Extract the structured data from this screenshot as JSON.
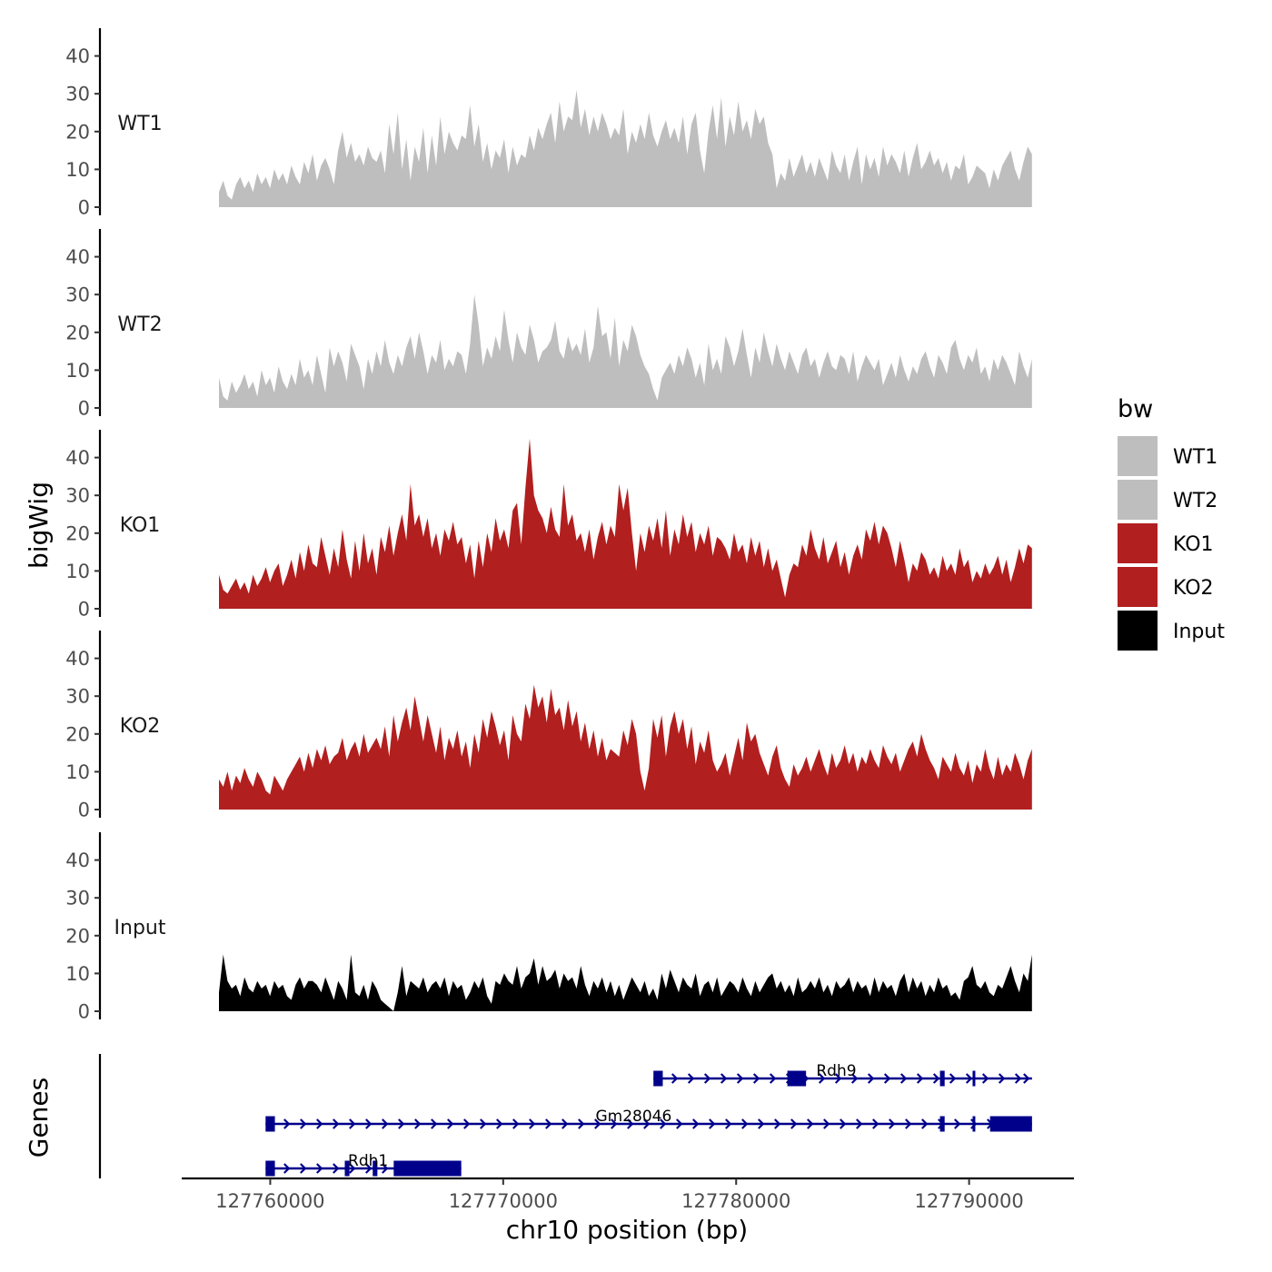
{
  "chart_data": {
    "type": "area",
    "title": "",
    "xlabel": "chr10 position (bp)",
    "ylabel": "bigWig",
    "genes_axis_label": "Genes",
    "xlim": [
      127756200,
      127794500
    ],
    "ylim": [
      0,
      45
    ],
    "x_ticks": [
      127760000,
      127770000,
      127780000,
      127790000
    ],
    "x_tick_labels": [
      "127760000",
      "127770000",
      "127780000",
      "127790000"
    ],
    "y_ticks": [
      0,
      10,
      20,
      30,
      40
    ],
    "y_tick_labels": [
      "0",
      "10",
      "20",
      "30",
      "40"
    ],
    "track_start": 127757800,
    "track_end": 127792700,
    "legend": {
      "title": "bw",
      "position": "right",
      "entries": [
        {
          "label": "WT1",
          "color": "#bebebe"
        },
        {
          "label": "WT2",
          "color": "#bebebe"
        },
        {
          "label": "KO1",
          "color": "#b21f1f"
        },
        {
          "label": "KO2",
          "color": "#b21f1f"
        },
        {
          "label": "Input",
          "color": "#000000"
        }
      ]
    },
    "series": [
      {
        "name": "WT1",
        "color": "#bebebe",
        "values": [
          4,
          7,
          3,
          2,
          6,
          8,
          5,
          7,
          4,
          9,
          6,
          8,
          5,
          10,
          7,
          9,
          6,
          11,
          8,
          6,
          12,
          9,
          14,
          7,
          11,
          13,
          10,
          6,
          15,
          20,
          13,
          17,
          12,
          14,
          11,
          16,
          13,
          12,
          15,
          9,
          22,
          14,
          25,
          10,
          18,
          7,
          16,
          12,
          21,
          9,
          19,
          11,
          24,
          14,
          20,
          17,
          15,
          19,
          18,
          27,
          16,
          22,
          12,
          17,
          10,
          15,
          13,
          18,
          9,
          16,
          11,
          14,
          13,
          19,
          15,
          21,
          18,
          22,
          25,
          17,
          28,
          20,
          24,
          23,
          31,
          21,
          26,
          19,
          24,
          20,
          25,
          22,
          18,
          21,
          19,
          26,
          14,
          20,
          17,
          22,
          18,
          25,
          19,
          16,
          20,
          23,
          18,
          21,
          17,
          24,
          14,
          22,
          25,
          15,
          9,
          20,
          27,
          18,
          29,
          16,
          24,
          19,
          28,
          20,
          23,
          18,
          26,
          22,
          24,
          17,
          14,
          5,
          9,
          7,
          13,
          8,
          11,
          14,
          9,
          12,
          8,
          13,
          10,
          7,
          15,
          11,
          9,
          14,
          7,
          12,
          16,
          6,
          14,
          10,
          13,
          8,
          16,
          11,
          14,
          12,
          9,
          15,
          8,
          13,
          17,
          10,
          12,
          15,
          11,
          13,
          9,
          12,
          7,
          11,
          10,
          14,
          6,
          8,
          11,
          10,
          9,
          5,
          10,
          7,
          11,
          13,
          15,
          10,
          7,
          12,
          16,
          14
        ]
      },
      {
        "name": "WT2",
        "color": "#bebebe",
        "values": [
          8,
          3,
          2,
          7,
          4,
          6,
          9,
          5,
          7,
          3,
          10,
          6,
          8,
          4,
          11,
          7,
          5,
          9,
          6,
          13,
          8,
          10,
          6,
          14,
          9,
          4,
          16,
          11,
          15,
          12,
          7,
          17,
          14,
          11,
          5,
          13,
          9,
          15,
          11,
          18,
          12,
          9,
          14,
          11,
          16,
          19,
          13,
          20,
          15,
          9,
          14,
          12,
          18,
          10,
          13,
          11,
          15,
          14,
          9,
          17,
          30,
          22,
          11,
          16,
          13,
          19,
          15,
          26,
          18,
          12,
          20,
          16,
          14,
          22,
          18,
          12,
          15,
          16,
          18,
          23,
          15,
          13,
          19,
          15,
          17,
          14,
          21,
          12,
          16,
          27,
          19,
          20,
          13,
          24,
          11,
          18,
          15,
          22,
          19,
          14,
          11,
          9,
          5,
          2,
          8,
          10,
          12,
          9,
          14,
          11,
          16,
          13,
          8,
          12,
          6,
          17,
          10,
          13,
          9,
          19,
          16,
          11,
          15,
          21,
          14,
          8,
          16,
          12,
          20,
          15,
          11,
          17,
          13,
          10,
          15,
          12,
          9,
          14,
          16,
          11,
          13,
          8,
          12,
          15,
          11,
          10,
          14,
          13,
          9,
          15,
          7,
          11,
          14,
          12,
          10,
          13,
          6,
          9,
          12,
          8,
          14,
          10,
          7,
          11,
          9,
          13,
          15,
          11,
          8,
          14,
          12,
          9,
          16,
          18,
          13,
          10,
          14,
          12,
          16,
          9,
          11,
          7,
          13,
          10,
          14,
          12,
          9,
          6,
          15,
          11,
          8,
          13
        ]
      },
      {
        "name": "KO1",
        "color": "#b21f1f",
        "values": [
          9,
          5,
          4,
          6,
          8,
          5,
          7,
          4,
          9,
          6,
          8,
          11,
          7,
          10,
          12,
          6,
          9,
          13,
          8,
          15,
          10,
          17,
          12,
          11,
          19,
          14,
          9,
          16,
          11,
          21,
          13,
          8,
          18,
          10,
          20,
          12,
          16,
          9,
          19,
          15,
          22,
          14,
          20,
          25,
          18,
          33,
          22,
          25,
          19,
          24,
          16,
          20,
          14,
          21,
          18,
          23,
          17,
          19,
          12,
          17,
          8,
          18,
          11,
          20,
          15,
          24,
          18,
          21,
          16,
          26,
          28,
          17,
          32,
          45,
          30,
          26,
          24,
          20,
          27,
          21,
          19,
          33,
          22,
          25,
          18,
          20,
          15,
          21,
          13,
          19,
          23,
          17,
          22,
          19,
          33,
          26,
          32,
          20,
          10,
          20,
          15,
          22,
          18,
          24,
          16,
          26,
          14,
          21,
          17,
          25,
          19,
          23,
          15,
          20,
          17,
          22,
          14,
          19,
          18,
          16,
          13,
          20,
          15,
          17,
          12,
          19,
          14,
          18,
          11,
          16,
          10,
          13,
          8,
          3,
          9,
          12,
          11,
          17,
          14,
          21,
          16,
          13,
          19,
          12,
          15,
          18,
          11,
          15,
          9,
          14,
          17,
          13,
          21,
          18,
          23,
          17,
          22,
          20,
          16,
          11,
          18,
          13,
          7,
          12,
          10,
          15,
          13,
          9,
          11,
          8,
          14,
          10,
          12,
          9,
          16,
          11,
          13,
          7,
          10,
          8,
          12,
          9,
          11,
          14,
          9,
          13,
          7,
          11,
          16,
          12,
          17,
          16
        ]
      },
      {
        "name": "KO2",
        "color": "#b21f1f",
        "values": [
          8,
          6,
          10,
          5,
          9,
          7,
          11,
          8,
          6,
          10,
          8,
          5,
          4,
          9,
          7,
          5,
          8,
          10,
          12,
          14,
          10,
          15,
          11,
          16,
          13,
          17,
          12,
          14,
          15,
          19,
          13,
          16,
          18,
          14,
          20,
          15,
          17,
          19,
          16,
          22,
          14,
          25,
          18,
          23,
          27,
          21,
          30,
          24,
          18,
          25,
          20,
          15,
          22,
          13,
          19,
          16,
          21,
          14,
          18,
          11,
          20,
          15,
          24,
          19,
          26,
          22,
          17,
          21,
          13,
          25,
          20,
          18,
          28,
          24,
          33,
          27,
          30,
          23,
          32,
          25,
          27,
          21,
          29,
          22,
          26,
          18,
          23,
          16,
          21,
          14,
          19,
          13,
          16,
          15,
          14,
          21,
          17,
          24,
          20,
          10,
          5,
          11,
          24,
          19,
          25,
          14,
          22,
          26,
          20,
          24,
          16,
          22,
          12,
          18,
          15,
          21,
          13,
          10,
          12,
          15,
          9,
          14,
          19,
          13,
          23,
          18,
          20,
          15,
          12,
          9,
          14,
          17,
          11,
          8,
          6,
          12,
          9,
          11,
          14,
          10,
          13,
          16,
          12,
          9,
          15,
          11,
          13,
          17,
          12,
          15,
          10,
          14,
          12,
          16,
          13,
          11,
          17,
          14,
          12,
          15,
          10,
          13,
          16,
          18,
          14,
          20,
          16,
          13,
          11,
          8,
          14,
          12,
          10,
          15,
          11,
          9,
          13,
          7,
          12,
          10,
          16,
          11,
          8,
          14,
          9,
          12,
          10,
          15,
          12,
          8,
          13,
          16
        ]
      },
      {
        "name": "Input",
        "color": "#000000",
        "values": [
          5,
          15,
          8,
          6,
          7,
          4,
          9,
          6,
          5,
          8,
          6,
          7,
          4,
          8,
          6,
          7,
          4,
          3,
          7,
          9,
          6,
          8,
          8,
          7,
          5,
          9,
          6,
          3,
          8,
          6,
          3,
          15,
          5,
          4,
          7,
          3,
          8,
          6,
          3,
          2,
          1,
          0,
          5,
          12,
          4,
          8,
          7,
          6,
          9,
          5,
          7,
          8,
          6,
          9,
          4,
          8,
          6,
          7,
          3,
          5,
          8,
          6,
          9,
          4,
          2,
          8,
          7,
          10,
          8,
          7,
          12,
          6,
          9,
          10,
          14,
          7,
          12,
          8,
          9,
          11,
          6,
          10,
          8,
          9,
          6,
          12,
          7,
          4,
          8,
          6,
          9,
          5,
          8,
          4,
          7,
          3,
          6,
          9,
          7,
          5,
          8,
          4,
          6,
          3,
          10,
          6,
          11,
          8,
          5,
          9,
          7,
          6,
          10,
          4,
          7,
          8,
          5,
          9,
          4,
          6,
          8,
          7,
          5,
          9,
          6,
          4,
          8,
          5,
          7,
          9,
          10,
          6,
          8,
          5,
          7,
          4,
          9,
          5,
          6,
          8,
          6,
          9,
          5,
          7,
          4,
          8,
          6,
          7,
          9,
          5,
          8,
          6,
          7,
          4,
          9,
          5,
          8,
          6,
          7,
          4,
          8,
          10,
          5,
          9,
          6,
          8,
          4,
          7,
          5,
          9,
          6,
          7,
          4,
          5,
          3,
          8,
          9,
          12,
          7,
          6,
          8,
          5,
          4,
          7,
          6,
          9,
          12,
          8,
          5,
          10,
          8,
          15
        ]
      }
    ],
    "genes": [
      {
        "name": "Rdh9",
        "row": 0,
        "strand": "+",
        "start": 127776450,
        "end": 127792700,
        "label_pos": 127784300,
        "exons": [
          {
            "start": 127776450,
            "end": 127776850
          },
          {
            "start": 127782200,
            "end": 127783000
          },
          {
            "start": 127788750,
            "end": 127788950
          },
          {
            "start": 127790150,
            "end": 127790250
          }
        ]
      },
      {
        "name": "Gm28046",
        "row": 1,
        "strand": "+",
        "start": 127759800,
        "end": 127792700,
        "label_pos": 127775600,
        "exons": [
          {
            "start": 127759800,
            "end": 127760200
          },
          {
            "start": 127788750,
            "end": 127788950
          },
          {
            "start": 127790150,
            "end": 127790250
          },
          {
            "start": 127790900,
            "end": 127792700
          }
        ]
      },
      {
        "name": "Rdh1",
        "row": 2,
        "strand": "+",
        "start": 127759800,
        "end": 127768200,
        "label_pos": 127764200,
        "exons": [
          {
            "start": 127759800,
            "end": 127760200
          },
          {
            "start": 127763200,
            "end": 127763400
          },
          {
            "start": 127764400,
            "end": 127764600
          },
          {
            "start": 127765300,
            "end": 127768200
          }
        ]
      }
    ]
  }
}
